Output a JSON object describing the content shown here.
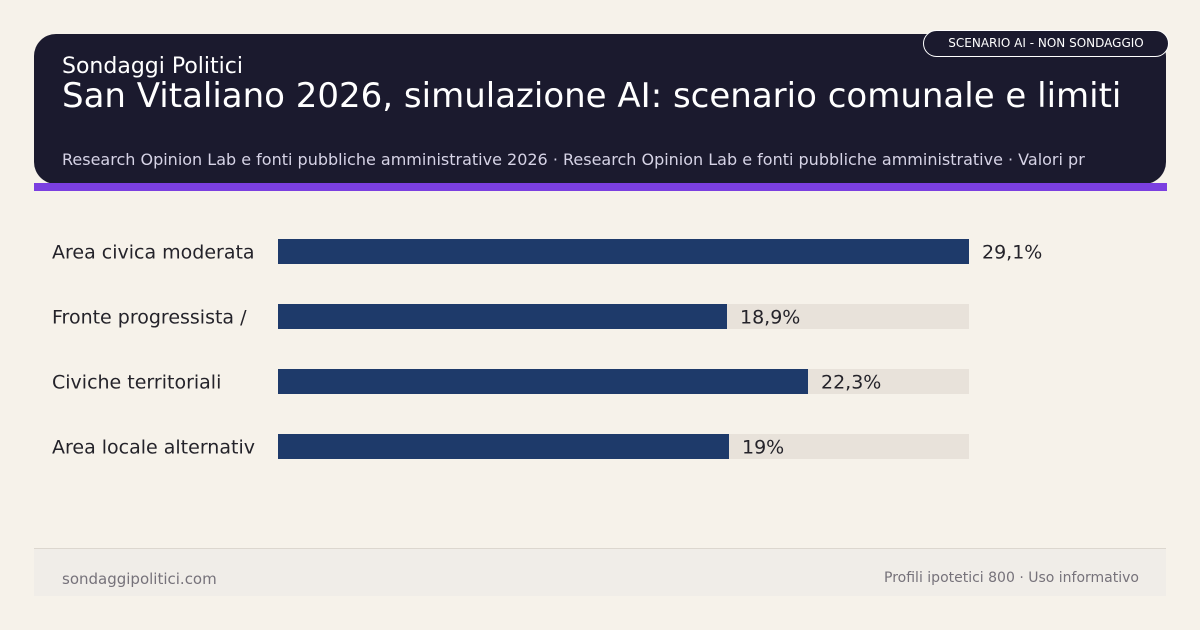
{
  "header": {
    "brand": "Sondaggi Politici",
    "title": "San Vitaliano 2026, simulazione AI: scenario comunale e limiti",
    "subtitle": "Research Opinion Lab e fonti pubbliche amministrative 2026 · Research Opinion Lab e fonti pubbliche amministrative · Valori pr",
    "badge": "SCENARIO AI - NON SONDAGGIO"
  },
  "chart_data": {
    "type": "bar",
    "orientation": "horizontal",
    "categories": [
      "Area civica moderata",
      "Fronte progressista /",
      "Civiche territoriali",
      "Area locale alternativ"
    ],
    "values": [
      29.1,
      18.9,
      22.3,
      19
    ],
    "value_labels": [
      "29,1%",
      "18,9%",
      "22,3%",
      "19%"
    ],
    "xlim": [
      0,
      29.1
    ],
    "bar_color": "#1e3a6a",
    "track_color": "#e8e2da",
    "title": "",
    "xlabel": "",
    "ylabel": ""
  },
  "footer": {
    "left": "sondaggipolitici.com",
    "right": "Profili ipotetici 800 · Uso informativo"
  },
  "colors": {
    "header_bg": "#1b1a2e",
    "accent": "#7b3fe0",
    "background": "#f6f2ea"
  }
}
